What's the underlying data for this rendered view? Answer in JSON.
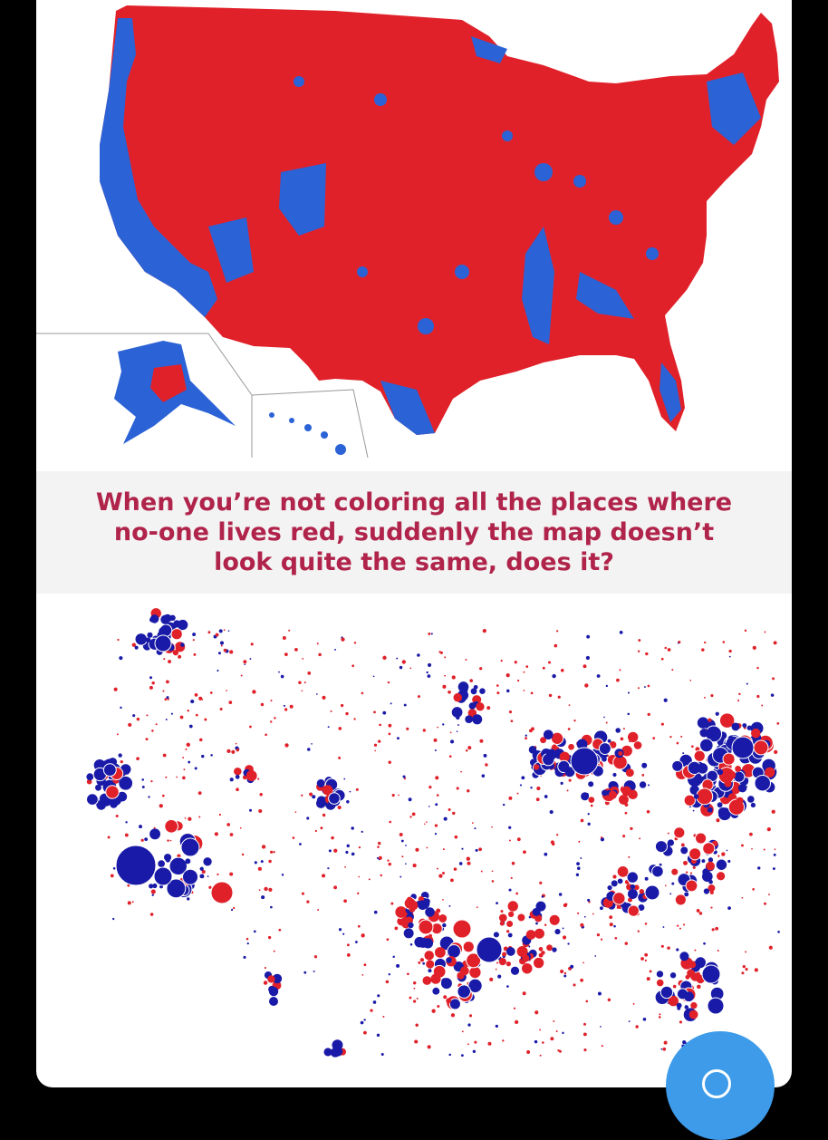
{
  "caption": {
    "text": "When you’re not coloring all the places where no-one lives red, suddenly the map doesn’t look quite the same, does it?"
  },
  "colors": {
    "red": "#e0212a",
    "blue": "#2b62d6",
    "dark_blue": "#1a1aa8",
    "caption_text": "#b0234a",
    "fab": "#3d9be9"
  },
  "maps": {
    "top": "county choropleth map of the United States, mostly red with blue areas",
    "bottom": "proportional circle map of the United States, red and blue circles"
  }
}
